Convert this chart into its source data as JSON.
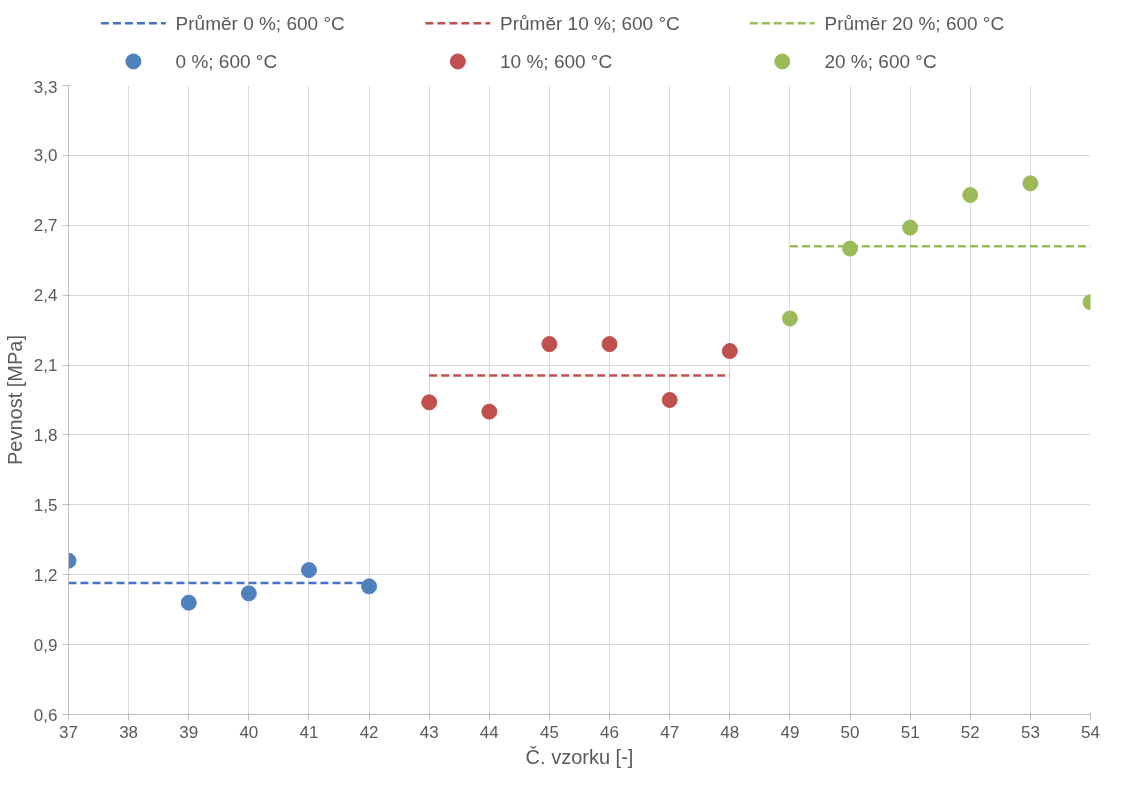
{
  "chart_data": {
    "type": "scatter",
    "xlabel": "Č. vzorku [-]",
    "ylabel": "Pevnost [MPa]",
    "categories": [
      "37",
      "38",
      "39",
      "40",
      "41",
      "42",
      "43",
      "44",
      "45",
      "46",
      "47",
      "48",
      "49",
      "50",
      "51",
      "52",
      "53",
      "54"
    ],
    "ylim": [
      0.6,
      3.3
    ],
    "yticks": [
      {
        "value": 0.6,
        "label": "0,6"
      },
      {
        "value": 0.9,
        "label": "0,9"
      },
      {
        "value": 1.2,
        "label": "1,2"
      },
      {
        "value": 1.5,
        "label": "1,5"
      },
      {
        "value": 1.8,
        "label": "1,8"
      },
      {
        "value": 2.1,
        "label": "2,1"
      },
      {
        "value": 2.4,
        "label": "2,4"
      },
      {
        "value": 2.7,
        "label": "2,7"
      },
      {
        "value": 3.0,
        "label": "3,0"
      },
      {
        "value": 3.3,
        "label": "3,3"
      }
    ],
    "grid": true,
    "legend": "top",
    "marker": "circle",
    "series": [
      {
        "name": "Průměr 0 %; 600 °C",
        "type": "line",
        "marker": "none",
        "line_style": "dashed",
        "color": "#4472c4",
        "values": [
          1.165,
          1.165,
          1.165,
          1.165,
          1.165,
          1.165,
          null,
          null,
          null,
          null,
          null,
          null,
          null,
          null,
          null,
          null,
          null,
          null
        ]
      },
      {
        "name": "Průměr 10 %; 600 °C",
        "type": "line",
        "marker": "none",
        "line_style": "dashed",
        "color": "#c0504d",
        "values": [
          null,
          null,
          null,
          null,
          null,
          null,
          2.055,
          2.055,
          2.055,
          2.055,
          2.055,
          2.055,
          null,
          null,
          null,
          null,
          null,
          null
        ]
      },
      {
        "name": "Průměr 20 %; 600 °C",
        "type": "line",
        "marker": "none",
        "line_style": "dashed",
        "color": "#9bbb59",
        "values": [
          null,
          null,
          null,
          null,
          null,
          null,
          null,
          null,
          null,
          null,
          null,
          null,
          2.61,
          2.61,
          2.61,
          2.61,
          2.61,
          2.61
        ]
      },
      {
        "name": "0 %; 600 °C",
        "color": "#4f81bd",
        "values": [
          1.26,
          null,
          1.08,
          1.12,
          1.22,
          1.15,
          null,
          null,
          null,
          null,
          null,
          null,
          null,
          null,
          null,
          null,
          null,
          null
        ]
      },
      {
        "name": "10 %; 600 °C",
        "color": "#c0504d",
        "values": [
          null,
          null,
          null,
          null,
          null,
          null,
          1.94,
          1.9,
          2.19,
          2.19,
          1.95,
          2.16,
          null,
          null,
          null,
          null,
          null,
          null
        ]
      },
      {
        "name": "20 %; 600 °C",
        "color": "#9bbb59",
        "values": [
          null,
          null,
          null,
          null,
          null,
          null,
          null,
          null,
          null,
          null,
          null,
          null,
          2.3,
          2.6,
          2.69,
          2.83,
          2.88,
          2.37
        ]
      }
    ]
  }
}
